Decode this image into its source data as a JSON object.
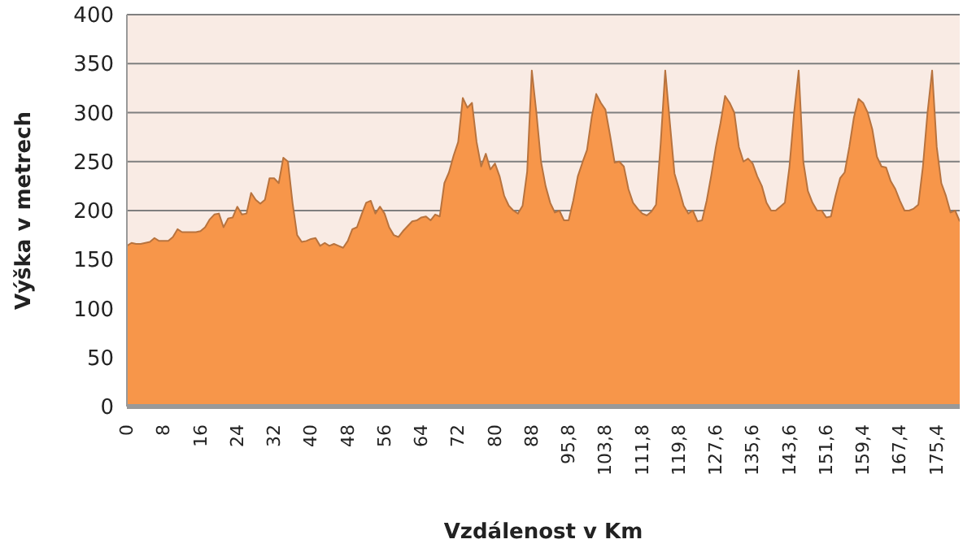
{
  "chart_data": {
    "type": "area",
    "xlabel": "Vzdálenost v Km",
    "ylabel": "Výška  v metrech",
    "categories": [
      "0",
      null,
      null,
      null,
      null,
      null,
      null,
      null,
      "8",
      null,
      null,
      null,
      null,
      null,
      null,
      null,
      "16",
      null,
      null,
      null,
      null,
      null,
      null,
      null,
      "24",
      null,
      null,
      null,
      null,
      null,
      null,
      null,
      "32",
      null,
      null,
      null,
      null,
      null,
      null,
      null,
      "40",
      null,
      null,
      null,
      null,
      null,
      null,
      null,
      "48",
      null,
      null,
      null,
      null,
      null,
      null,
      null,
      "56",
      null,
      null,
      null,
      null,
      null,
      null,
      null,
      "64",
      null,
      null,
      null,
      null,
      null,
      null,
      null,
      "72",
      null,
      null,
      null,
      null,
      null,
      null,
      null,
      "80",
      null,
      null,
      null,
      null,
      null,
      null,
      null,
      "88",
      null,
      null,
      null,
      null,
      null,
      null,
      null,
      "95,8",
      null,
      null,
      null,
      null,
      null,
      null,
      null,
      "103,8",
      null,
      null,
      null,
      null,
      null,
      null,
      null,
      "111,8",
      null,
      null,
      null,
      null,
      null,
      null,
      null,
      "119,8",
      null,
      null,
      null,
      null,
      null,
      null,
      null,
      "127,6",
      null,
      null,
      null,
      null,
      null,
      null,
      null,
      "135,6",
      null,
      null,
      null,
      null,
      null,
      null,
      null,
      "143,6",
      null,
      null,
      null,
      null,
      null,
      null,
      null,
      "151,6",
      null,
      null,
      null,
      null,
      null,
      null,
      null,
      "159,4",
      null,
      null,
      null,
      null,
      null,
      null,
      null,
      "167,4",
      null,
      null,
      null,
      null,
      null,
      null,
      null,
      "175,4",
      null,
      null,
      null,
      null,
      null
    ],
    "series": [
      {
        "color": "#f7964a",
        "values": [
          164,
          167,
          166,
          166,
          167,
          168,
          172,
          169,
          169,
          169,
          173,
          181,
          178,
          178,
          178,
          178,
          179,
          183,
          191,
          196,
          197,
          183,
          192,
          193,
          204,
          196,
          197,
          218,
          211,
          207,
          211,
          233,
          233,
          228,
          254,
          250,
          208,
          175,
          168,
          169,
          171,
          172,
          164,
          167,
          164,
          166,
          164,
          162,
          169,
          181,
          183,
          196,
          208,
          210,
          197,
          204,
          197,
          183,
          175,
          173,
          179,
          184,
          189,
          190,
          193,
          194,
          190,
          196,
          194,
          228,
          239,
          256,
          270,
          315,
          305,
          310,
          270,
          245,
          258,
          242,
          248,
          235,
          215,
          205,
          200,
          197,
          205,
          240,
          343,
          300,
          250,
          225,
          208,
          198,
          200,
          190,
          190,
          210,
          235,
          249,
          262,
          295,
          319,
          310,
          303,
          277,
          249,
          250,
          245,
          222,
          208,
          202,
          197,
          195,
          199,
          206,
          268,
          343,
          290,
          238,
          222,
          205,
          197,
          200,
          189,
          190,
          210,
          236,
          265,
          289,
          317,
          310,
          300,
          265,
          250,
          253,
          248,
          235,
          225,
          208,
          200,
          200,
          204,
          208,
          245,
          300,
          343,
          250,
          220,
          208,
          200,
          200,
          193,
          194,
          215,
          233,
          239,
          265,
          295,
          314,
          310,
          300,
          283,
          255,
          245,
          244,
          230,
          222,
          210,
          200,
          200,
          202,
          206,
          245,
          300,
          343,
          265,
          228,
          215,
          198,
          200,
          189
        ]
      }
    ],
    "ylim": [
      0,
      400
    ],
    "yticks": [
      0,
      50,
      100,
      150,
      200,
      250,
      300,
      350,
      400
    ],
    "grid": "y"
  }
}
